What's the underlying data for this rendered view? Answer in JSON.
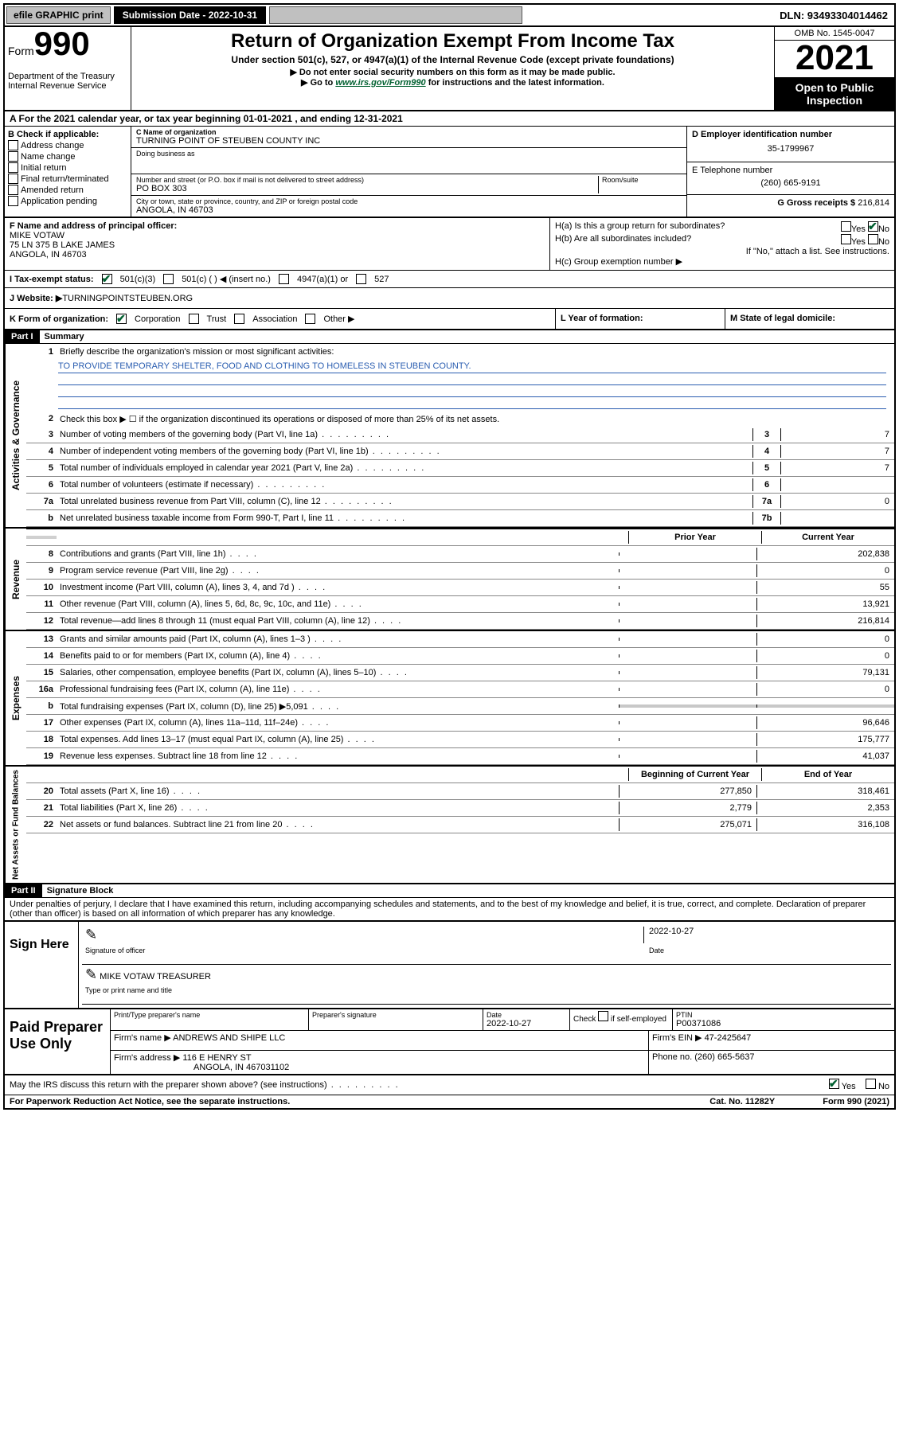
{
  "topbar": {
    "efile": "efile GRAPHIC print",
    "submission_label": "Submission Date - 2022-10-31",
    "dln_label": "DLN: 93493304014462"
  },
  "header": {
    "form_prefix": "Form",
    "form_number": "990",
    "dept": "Department of the Treasury",
    "irs": "Internal Revenue Service",
    "title": "Return of Organization Exempt From Income Tax",
    "subtitle": "Under section 501(c), 527, or 4947(a)(1) of the Internal Revenue Code (except private foundations)",
    "warn1": "▶ Do not enter social security numbers on this form as it may be made public.",
    "warn2_pre": "▶ Go to ",
    "warn2_link": "www.irs.gov/Form990",
    "warn2_post": " for instructions and the latest information.",
    "omb": "OMB No. 1545-0047",
    "year": "2021",
    "open": "Open to Public Inspection"
  },
  "rowA": "A  For the 2021 calendar year, or tax year beginning 01-01-2021    , and ending 12-31-2021",
  "boxB": {
    "title": "B Check if applicable:",
    "items": [
      "Address change",
      "Name change",
      "Initial return",
      "Final return/terminated",
      "Amended return",
      "Application pending"
    ]
  },
  "boxC": {
    "name_label": "C Name of organization",
    "name": "TURNING POINT OF STEUBEN COUNTY INC",
    "dba_label": "Doing business as",
    "addr_label": "Number and street (or P.O. box if mail is not delivered to street address)",
    "room_label": "Room/suite",
    "addr": "PO BOX 303",
    "city_label": "City or town, state or province, country, and ZIP or foreign postal code",
    "city": "ANGOLA, IN  46703"
  },
  "boxD": {
    "label": "D Employer identification number",
    "ein": "35-1799967"
  },
  "boxE": {
    "label": "E Telephone number",
    "phone": "(260) 665-9191"
  },
  "boxG": {
    "label": "G Gross receipts $",
    "val": "216,814"
  },
  "boxF": {
    "label": "F Name and address of principal officer:",
    "name": "MIKE VOTAW",
    "addr1": "75 LN 375 B LAKE JAMES",
    "addr2": "ANGOLA, IN  46703"
  },
  "boxH": {
    "a": "H(a)  Is this a group return for subordinates?",
    "b": "H(b)  Are all subordinates included?",
    "note": "If \"No,\" attach a list. See instructions.",
    "c": "H(c)  Group exemption number ▶",
    "yes": "Yes",
    "no": "No"
  },
  "rowI": {
    "label": "I    Tax-exempt status:",
    "opt1": "501(c)(3)",
    "opt2": "501(c) (  ) ◀ (insert no.)",
    "opt3": "4947(a)(1) or",
    "opt4": "527"
  },
  "rowJ": {
    "label": "J    Website: ▶",
    "val": " TURNINGPOINTSTEUBEN.ORG"
  },
  "rowK": {
    "label": "K Form of organization:",
    "opts": [
      "Corporation",
      "Trust",
      "Association",
      "Other ▶"
    ],
    "checked": 0
  },
  "rowL": {
    "label": "L Year of formation:",
    "val": ""
  },
  "rowM": {
    "label": "M State of legal domicile:",
    "val": ""
  },
  "partI": {
    "header": "Part I",
    "title": "Summary",
    "side_gov": "Activities & Governance",
    "side_rev": "Revenue",
    "side_exp": "Expenses",
    "side_net": "Net Assets or Fund Balances",
    "line1_label": "Briefly describe the organization's mission or most significant activities:",
    "mission": "TO PROVIDE TEMPORARY SHELTER, FOOD AND CLOTHING TO HOMELESS IN STEUBEN COUNTY.",
    "line2": "Check this box ▶ ☐  if the organization discontinued its operations or disposed of more than 25% of its net assets.",
    "lines_gov": [
      {
        "n": "3",
        "t": "Number of voting members of the governing body (Part VI, line 1a)",
        "box": "3",
        "v": "7"
      },
      {
        "n": "4",
        "t": "Number of independent voting members of the governing body (Part VI, line 1b)",
        "box": "4",
        "v": "7"
      },
      {
        "n": "5",
        "t": "Total number of individuals employed in calendar year 2021 (Part V, line 2a)",
        "box": "5",
        "v": "7"
      },
      {
        "n": "6",
        "t": "Total number of volunteers (estimate if necessary)",
        "box": "6",
        "v": ""
      },
      {
        "n": "7a",
        "t": "Total unrelated business revenue from Part VIII, column (C), line 12",
        "box": "7a",
        "v": "0"
      },
      {
        "n": "b",
        "t": "Net unrelated business taxable income from Form 990-T, Part I, line 11",
        "box": "7b",
        "v": ""
      }
    ],
    "col_prior": "Prior Year",
    "col_current": "Current Year",
    "lines_rev": [
      {
        "n": "8",
        "t": "Contributions and grants (Part VIII, line 1h)",
        "p": "",
        "c": "202,838"
      },
      {
        "n": "9",
        "t": "Program service revenue (Part VIII, line 2g)",
        "p": "",
        "c": "0"
      },
      {
        "n": "10",
        "t": "Investment income (Part VIII, column (A), lines 3, 4, and 7d )",
        "p": "",
        "c": "55"
      },
      {
        "n": "11",
        "t": "Other revenue (Part VIII, column (A), lines 5, 6d, 8c, 9c, 10c, and 11e)",
        "p": "",
        "c": "13,921"
      },
      {
        "n": "12",
        "t": "Total revenue—add lines 8 through 11 (must equal Part VIII, column (A), line 12)",
        "p": "",
        "c": "216,814"
      }
    ],
    "lines_exp": [
      {
        "n": "13",
        "t": "Grants and similar amounts paid (Part IX, column (A), lines 1–3 )",
        "p": "",
        "c": "0"
      },
      {
        "n": "14",
        "t": "Benefits paid to or for members (Part IX, column (A), line 4)",
        "p": "",
        "c": "0"
      },
      {
        "n": "15",
        "t": "Salaries, other compensation, employee benefits (Part IX, column (A), lines 5–10)",
        "p": "",
        "c": "79,131"
      },
      {
        "n": "16a",
        "t": "Professional fundraising fees (Part IX, column (A), line 11e)",
        "p": "",
        "c": "0"
      },
      {
        "n": "b",
        "t": "Total fundraising expenses (Part IX, column (D), line 25) ▶5,091",
        "p": "shade",
        "c": "shade"
      },
      {
        "n": "17",
        "t": "Other expenses (Part IX, column (A), lines 11a–11d, 11f–24e)",
        "p": "",
        "c": "96,646"
      },
      {
        "n": "18",
        "t": "Total expenses. Add lines 13–17 (must equal Part IX, column (A), line 25)",
        "p": "",
        "c": "175,777"
      },
      {
        "n": "19",
        "t": "Revenue less expenses. Subtract line 18 from line 12",
        "p": "",
        "c": "41,037"
      }
    ],
    "col_begin": "Beginning of Current Year",
    "col_end": "End of Year",
    "lines_net": [
      {
        "n": "20",
        "t": "Total assets (Part X, line 16)",
        "p": "277,850",
        "c": "318,461"
      },
      {
        "n": "21",
        "t": "Total liabilities (Part X, line 26)",
        "p": "2,779",
        "c": "2,353"
      },
      {
        "n": "22",
        "t": "Net assets or fund balances. Subtract line 21 from line 20",
        "p": "275,071",
        "c": "316,108"
      }
    ]
  },
  "partII": {
    "header": "Part II",
    "title": "Signature Block",
    "decl": "Under penalties of perjury, I declare that I have examined this return, including accompanying schedules and statements, and to the best of my knowledge and belief, it is true, correct, and complete. Declaration of preparer (other than officer) is based on all information of which preparer has any knowledge."
  },
  "sign": {
    "here": "Sign Here",
    "sig_label": "Signature of officer",
    "date_label": "Date",
    "date": "2022-10-27",
    "name": "MIKE VOTAW  TREASURER",
    "name_label": "Type or print name and title"
  },
  "paid": {
    "label": "Paid Preparer Use Only",
    "h1": "Print/Type preparer's name",
    "h2": "Preparer's signature",
    "h3": "Date",
    "date": "2022-10-27",
    "h4_pre": "Check",
    "h4_post": "if self-employed",
    "h5": "PTIN",
    "ptin": "P00371086",
    "firm_name_l": "Firm's name    ▶",
    "firm_name": "ANDREWS AND SHIPE LLC",
    "firm_ein_l": "Firm's EIN ▶",
    "firm_ein": "47-2425647",
    "firm_addr_l": "Firm's address ▶",
    "firm_addr1": "116 E HENRY ST",
    "firm_addr2": "ANGOLA, IN  467031102",
    "phone_l": "Phone no.",
    "phone": "(260) 665-5637"
  },
  "footer": {
    "discuss": "May the IRS discuss this return with the preparer shown above? (see instructions)",
    "yes": "Yes",
    "no": "No",
    "paperwork": "For Paperwork Reduction Act Notice, see the separate instructions.",
    "cat": "Cat. No. 11282Y",
    "form": "Form 990 (2021)"
  }
}
